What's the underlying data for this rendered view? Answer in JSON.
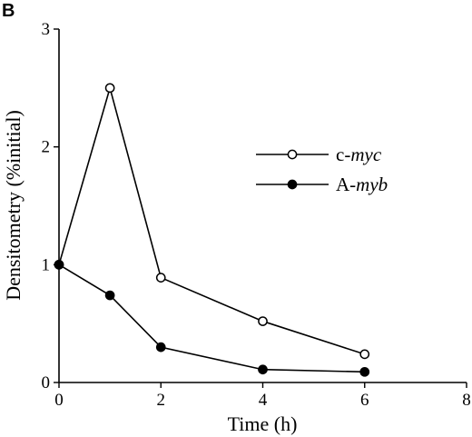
{
  "panel_label": "B",
  "chart_data": {
    "type": "line",
    "title": "",
    "xlabel": "Time (h)",
    "ylabel": "Densitometry (%initial)",
    "xlim": [
      0,
      8
    ],
    "ylim": [
      0,
      3
    ],
    "xticks": [
      0,
      2,
      4,
      6,
      8
    ],
    "yticks": [
      0,
      1,
      2,
      3
    ],
    "grid": false,
    "legend_position": "right",
    "series": [
      {
        "name": "c-myc",
        "prefix": "c-",
        "italic_part": "myc",
        "marker": "open-circle",
        "x": [
          0,
          1,
          2,
          4,
          6
        ],
        "y": [
          1.0,
          2.5,
          0.89,
          0.52,
          0.24
        ]
      },
      {
        "name": "A-myb",
        "prefix": "A-",
        "italic_part": "myb",
        "marker": "filled-circle",
        "x": [
          0,
          1,
          2,
          4,
          6
        ],
        "y": [
          1.0,
          0.74,
          0.3,
          0.11,
          0.09
        ]
      }
    ]
  }
}
